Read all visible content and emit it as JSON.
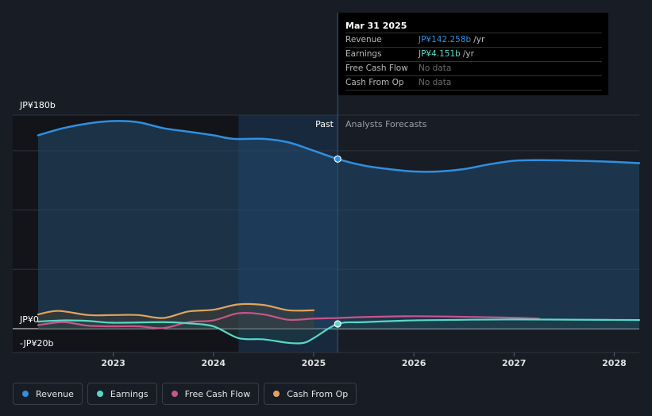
{
  "chart_data": {
    "type": "line",
    "title": "",
    "xlabel": "",
    "ylabel": "",
    "y_axis_labels": [
      "JP¥180b",
      "JP¥0",
      "-JP¥20b"
    ],
    "ylim": [
      -20,
      180
    ],
    "xlim": [
      2022.25,
      2028.25
    ],
    "x_ticks": [
      2023,
      2024,
      2025,
      2026,
      2027,
      2028
    ],
    "x_tick_labels": [
      "2023",
      "2024",
      "2025",
      "2026",
      "2027",
      "2028"
    ],
    "divider_x": 2025.24,
    "past_label": "Past",
    "forecast_label": "Analysts Forecasts",
    "series": [
      {
        "name": "Revenue",
        "color": "#2f8fe0",
        "fill": true,
        "points": [
          [
            2022.25,
            163
          ],
          [
            2022.5,
            169
          ],
          [
            2022.75,
            173
          ],
          [
            2023.0,
            175
          ],
          [
            2023.25,
            174
          ],
          [
            2023.5,
            169
          ],
          [
            2023.75,
            166
          ],
          [
            2024.0,
            163
          ],
          [
            2024.2,
            160
          ],
          [
            2024.5,
            160
          ],
          [
            2024.75,
            157
          ],
          [
            2025.0,
            150
          ],
          [
            2025.24,
            143
          ],
          [
            2025.5,
            137.5
          ],
          [
            2025.75,
            134.5
          ],
          [
            2026.0,
            132.5
          ],
          [
            2026.25,
            132.5
          ],
          [
            2026.5,
            134.5
          ],
          [
            2026.75,
            138.5
          ],
          [
            2027.0,
            141.5
          ],
          [
            2027.25,
            142
          ],
          [
            2027.5,
            141.8
          ],
          [
            2027.75,
            141.3
          ],
          [
            2028.0,
            140.6
          ],
          [
            2028.25,
            139.5
          ]
        ]
      },
      {
        "name": "Earnings",
        "color": "#58d9c8",
        "fill": true,
        "points": [
          [
            2022.25,
            6
          ],
          [
            2022.5,
            7
          ],
          [
            2022.75,
            6.5
          ],
          [
            2023.0,
            5
          ],
          [
            2023.5,
            5.5
          ],
          [
            2023.75,
            4.5
          ],
          [
            2024.0,
            2
          ],
          [
            2024.25,
            -8
          ],
          [
            2024.5,
            -9
          ],
          [
            2024.75,
            -12
          ],
          [
            2024.9,
            -12
          ],
          [
            2025.0,
            -8
          ],
          [
            2025.24,
            4
          ],
          [
            2025.5,
            5.5
          ],
          [
            2026.0,
            7
          ],
          [
            2026.5,
            7.5
          ],
          [
            2027.0,
            7.8
          ],
          [
            2027.5,
            7.6
          ],
          [
            2028.0,
            7.4
          ],
          [
            2028.25,
            7.3
          ]
        ]
      },
      {
        "name": "Free Cash Flow",
        "color": "#c9558a",
        "fill": false,
        "points": [
          [
            2022.25,
            3
          ],
          [
            2022.5,
            5.5
          ],
          [
            2022.75,
            2.5
          ],
          [
            2023.0,
            2
          ],
          [
            2023.25,
            2
          ],
          [
            2023.5,
            0.5
          ],
          [
            2023.75,
            5.5
          ],
          [
            2024.0,
            7
          ],
          [
            2024.25,
            13
          ],
          [
            2024.5,
            12
          ],
          [
            2024.75,
            7.5
          ],
          [
            2025.0,
            8.5
          ],
          [
            2025.24,
            9
          ],
          [
            2025.5,
            9.8
          ],
          [
            2026.0,
            10.5
          ],
          [
            2026.5,
            10
          ],
          [
            2027.0,
            9.2
          ],
          [
            2027.25,
            8.5
          ]
        ]
      },
      {
        "name": "Cash From Op",
        "color": "#e0a45c",
        "fill": true,
        "points": [
          [
            2022.25,
            12
          ],
          [
            2022.45,
            15
          ],
          [
            2022.75,
            11.5
          ],
          [
            2023.0,
            11.5
          ],
          [
            2023.25,
            11.5
          ],
          [
            2023.5,
            9
          ],
          [
            2023.75,
            14.5
          ],
          [
            2024.0,
            16
          ],
          [
            2024.25,
            20.5
          ],
          [
            2024.5,
            20
          ],
          [
            2024.75,
            15.5
          ],
          [
            2025.0,
            15.5
          ]
        ]
      }
    ]
  },
  "tooltip": {
    "date": "Mar 31 2025",
    "rows": [
      {
        "label": "Revenue",
        "value": "JP¥142.258b",
        "unit": "/yr",
        "color": "#2f8fe0"
      },
      {
        "label": "Earnings",
        "value": "JP¥4.151b",
        "unit": "/yr",
        "color": "#58d9c8"
      },
      {
        "label": "Free Cash Flow",
        "value": "No data",
        "unit": "",
        "color": "#6c6c6c"
      },
      {
        "label": "Cash From Op",
        "value": "No data",
        "unit": "",
        "color": "#6c6c6c"
      }
    ]
  },
  "legend": [
    {
      "label": "Revenue",
      "color": "#2f8fe0"
    },
    {
      "label": "Earnings",
      "color": "#58d9c8"
    },
    {
      "label": "Free Cash Flow",
      "color": "#c9558a"
    },
    {
      "label": "Cash From Op",
      "color": "#e0a45c"
    }
  ]
}
